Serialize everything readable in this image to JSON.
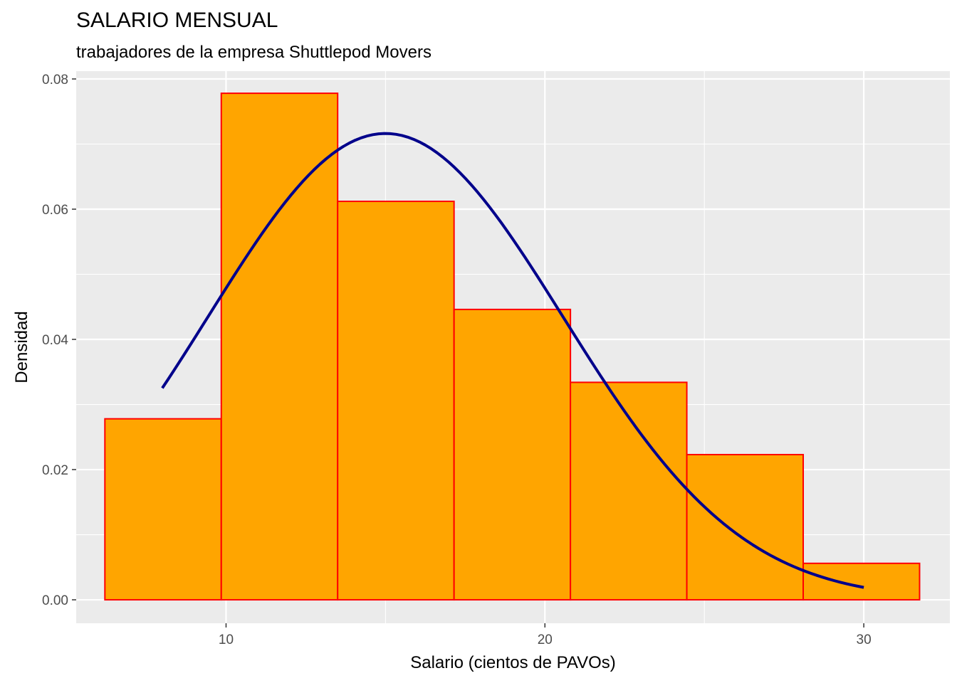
{
  "chart_data": {
    "type": "bar",
    "title": "SALARIO MENSUAL",
    "subtitle": "trabajadores de la empresa Shuttlepod Movers",
    "xlabel": "Salario (cientos de PAVOs)",
    "ylabel": "Densidad",
    "xlim": [
      5.3,
      32.7
    ],
    "ylim": [
      -0.0036,
      0.0812
    ],
    "x_ticks": [
      10,
      20,
      30
    ],
    "x_tick_labels": [
      "10",
      "20",
      "30"
    ],
    "y_ticks": [
      0,
      0.02,
      0.04,
      0.06,
      0.08
    ],
    "y_tick_labels": [
      "0.00",
      "0.02",
      "0.04",
      "0.06",
      "0.08"
    ],
    "grid": true,
    "histogram": {
      "bins": [
        {
          "x0": 6.2,
          "x1": 9.85,
          "density": 0.0278
        },
        {
          "x0": 9.85,
          "x1": 13.5,
          "density": 0.0778
        },
        {
          "x0": 13.5,
          "x1": 17.15,
          "density": 0.0612
        },
        {
          "x0": 17.15,
          "x1": 20.8,
          "density": 0.0446
        },
        {
          "x0": 20.8,
          "x1": 24.45,
          "density": 0.0334
        },
        {
          "x0": 24.45,
          "x1": 28.1,
          "density": 0.0223
        },
        {
          "x0": 28.1,
          "x1": 31.75,
          "density": 0.0056
        }
      ],
      "fill": "#FFA500",
      "stroke": "#FF0000"
    },
    "density_curve": {
      "type": "normal",
      "mean": 15.0,
      "sd": 5.57,
      "x_range": [
        8.0,
        30.0
      ],
      "color": "#00008B"
    }
  }
}
